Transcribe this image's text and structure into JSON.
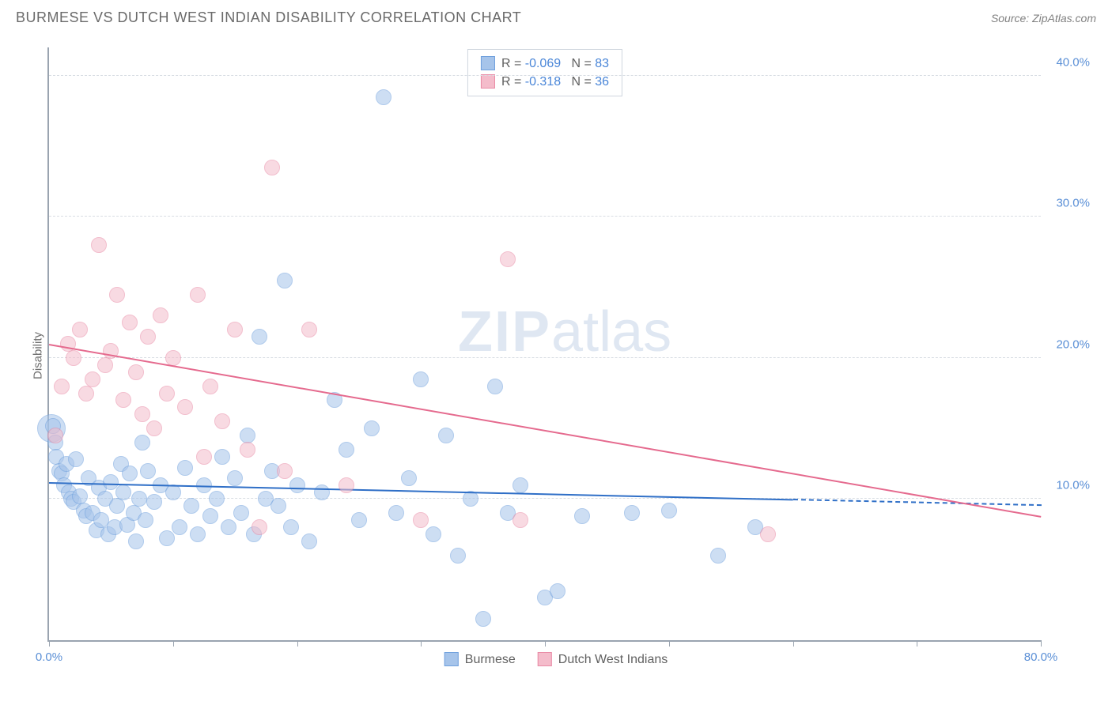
{
  "header": {
    "title": "BURMESE VS DUTCH WEST INDIAN DISABILITY CORRELATION CHART",
    "source": "Source: ZipAtlas.com"
  },
  "watermark": {
    "bold": "ZIP",
    "rest": "atlas"
  },
  "chart": {
    "type": "scatter",
    "ylabel": "Disability",
    "background_color": "#ffffff",
    "axis_color": "#9aa4b0",
    "grid_color": "#d8dde3",
    "tick_label_color": "#5a8fd6",
    "label_fontsize": 15,
    "xlim": [
      0,
      80
    ],
    "ylim": [
      0,
      42
    ],
    "xticks": [
      0,
      10,
      20,
      30,
      40,
      50,
      60,
      70,
      80
    ],
    "xtick_labels": {
      "0": "0.0%",
      "80": "80.0%"
    },
    "yticks": [
      10,
      20,
      30,
      40
    ],
    "ytick_labels": {
      "10": "10.0%",
      "20": "20.0%",
      "30": "30.0%",
      "40": "40.0%"
    },
    "marker_radius": 10,
    "marker_opacity": 0.55,
    "marker_border_opacity": 0.9,
    "trend_line_width": 2,
    "series": [
      {
        "name": "Burmese",
        "color_fill": "#a6c4ea",
        "color_border": "#6fa0dd",
        "trend_color": "#2f6fc7",
        "r": "-0.069",
        "n": "83",
        "trend": {
          "x1": 0,
          "y1": 11.2,
          "x2": 60,
          "y2": 10.0
        },
        "trend_dash": {
          "x1": 60,
          "y1": 10.0,
          "x2": 80,
          "y2": 9.6
        },
        "points": [
          [
            0.3,
            15.2
          ],
          [
            0.5,
            14.0
          ],
          [
            0.6,
            13.0
          ],
          [
            0.8,
            12.0
          ],
          [
            1.0,
            11.8
          ],
          [
            1.2,
            11.0
          ],
          [
            1.4,
            12.5
          ],
          [
            1.6,
            10.5
          ],
          [
            1.8,
            10.0
          ],
          [
            2.0,
            9.8
          ],
          [
            2.2,
            12.8
          ],
          [
            2.5,
            10.2
          ],
          [
            2.8,
            9.2
          ],
          [
            3.0,
            8.8
          ],
          [
            3.2,
            11.5
          ],
          [
            3.5,
            9.0
          ],
          [
            3.8,
            7.8
          ],
          [
            4.0,
            10.8
          ],
          [
            4.2,
            8.5
          ],
          [
            4.5,
            10.0
          ],
          [
            4.8,
            7.5
          ],
          [
            5.0,
            11.2
          ],
          [
            5.3,
            8.0
          ],
          [
            5.5,
            9.5
          ],
          [
            5.8,
            12.5
          ],
          [
            6.0,
            10.5
          ],
          [
            6.3,
            8.2
          ],
          [
            6.5,
            11.8
          ],
          [
            6.8,
            9.0
          ],
          [
            7.0,
            7.0
          ],
          [
            7.3,
            10.0
          ],
          [
            7.5,
            14.0
          ],
          [
            7.8,
            8.5
          ],
          [
            8.0,
            12.0
          ],
          [
            8.5,
            9.8
          ],
          [
            9.0,
            11.0
          ],
          [
            9.5,
            7.2
          ],
          [
            10.0,
            10.5
          ],
          [
            10.5,
            8.0
          ],
          [
            11.0,
            12.2
          ],
          [
            11.5,
            9.5
          ],
          [
            12.0,
            7.5
          ],
          [
            12.5,
            11.0
          ],
          [
            13.0,
            8.8
          ],
          [
            13.5,
            10.0
          ],
          [
            14.0,
            13.0
          ],
          [
            14.5,
            8.0
          ],
          [
            15.0,
            11.5
          ],
          [
            15.5,
            9.0
          ],
          [
            16.0,
            14.5
          ],
          [
            16.5,
            7.5
          ],
          [
            17.0,
            21.5
          ],
          [
            17.5,
            10.0
          ],
          [
            18.0,
            12.0
          ],
          [
            18.5,
            9.5
          ],
          [
            19.0,
            25.5
          ],
          [
            19.5,
            8.0
          ],
          [
            20.0,
            11.0
          ],
          [
            21.0,
            7.0
          ],
          [
            22.0,
            10.5
          ],
          [
            23.0,
            17.0
          ],
          [
            24.0,
            13.5
          ],
          [
            25.0,
            8.5
          ],
          [
            26.0,
            15.0
          ],
          [
            27.0,
            38.5
          ],
          [
            28.0,
            9.0
          ],
          [
            29.0,
            11.5
          ],
          [
            30.0,
            18.5
          ],
          [
            31.0,
            7.5
          ],
          [
            32.0,
            14.5
          ],
          [
            33.0,
            6.0
          ],
          [
            34.0,
            10.0
          ],
          [
            35.0,
            1.5
          ],
          [
            36.0,
            18.0
          ],
          [
            37.0,
            9.0
          ],
          [
            38.0,
            11.0
          ],
          [
            40.0,
            3.0
          ],
          [
            41.0,
            3.5
          ],
          [
            43.0,
            8.8
          ],
          [
            47.0,
            9.0
          ],
          [
            50.0,
            9.2
          ],
          [
            54.0,
            6.0
          ],
          [
            57.0,
            8.0
          ]
        ],
        "big_point": {
          "x": 0.2,
          "y": 15.0,
          "r": 18
        }
      },
      {
        "name": "Dutch West Indians",
        "color_fill": "#f4bccb",
        "color_border": "#e98aa5",
        "trend_color": "#e56a8e",
        "r": "-0.318",
        "n": "36",
        "trend": {
          "x1": 0,
          "y1": 21.0,
          "x2": 80,
          "y2": 8.8
        },
        "points": [
          [
            0.5,
            14.5
          ],
          [
            1.0,
            18.0
          ],
          [
            1.5,
            21.0
          ],
          [
            2.0,
            20.0
          ],
          [
            2.5,
            22.0
          ],
          [
            3.0,
            17.5
          ],
          [
            3.5,
            18.5
          ],
          [
            4.0,
            28.0
          ],
          [
            4.5,
            19.5
          ],
          [
            5.0,
            20.5
          ],
          [
            5.5,
            24.5
          ],
          [
            6.0,
            17.0
          ],
          [
            6.5,
            22.5
          ],
          [
            7.0,
            19.0
          ],
          [
            7.5,
            16.0
          ],
          [
            8.0,
            21.5
          ],
          [
            8.5,
            15.0
          ],
          [
            9.0,
            23.0
          ],
          [
            9.5,
            17.5
          ],
          [
            10.0,
            20.0
          ],
          [
            11.0,
            16.5
          ],
          [
            12.0,
            24.5
          ],
          [
            12.5,
            13.0
          ],
          [
            13.0,
            18.0
          ],
          [
            14.0,
            15.5
          ],
          [
            15.0,
            22.0
          ],
          [
            16.0,
            13.5
          ],
          [
            17.0,
            8.0
          ],
          [
            18.0,
            33.5
          ],
          [
            19.0,
            12.0
          ],
          [
            21.0,
            22.0
          ],
          [
            24.0,
            11.0
          ],
          [
            30.0,
            8.5
          ],
          [
            37.0,
            27.0
          ],
          [
            38.0,
            8.5
          ],
          [
            58.0,
            7.5
          ]
        ]
      }
    ]
  },
  "legend_top": {
    "r_label": "R =",
    "n_label": "N ="
  },
  "legend_bottom": {
    "items": [
      "Burmese",
      "Dutch West Indians"
    ]
  }
}
